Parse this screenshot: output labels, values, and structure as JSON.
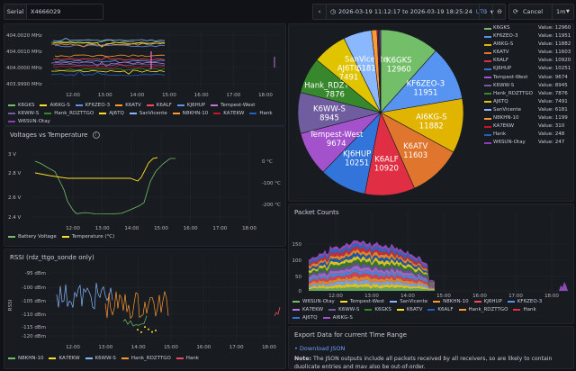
{
  "topbar": {
    "serial_label": "Serial",
    "serial_value": "X4666029",
    "time_range_from": "2026-03-19 11:12:17",
    "time_range_sep": "to",
    "time_range_to": "2026-03-19 18:25:24",
    "timezone": "UTC",
    "cancel_label": "Cancel",
    "refresh_interval": "1m"
  },
  "frequency_panel": {
    "y_ticks": [
      "404.0020 MHz",
      "404.0010 MHz",
      "404.0000 MHz",
      "403.9990 MHz"
    ],
    "x_ticks": [
      "12:00",
      "13:00",
      "14:00",
      "15:00",
      "16:00",
      "17:00",
      "18:00"
    ],
    "legend": [
      {
        "name": "K6GKS",
        "color": "#73bf69"
      },
      {
        "name": "AI6KG-S",
        "color": "#fade2a"
      },
      {
        "name": "KF6ZEO-3",
        "color": "#5794f2"
      },
      {
        "name": "K6ATV",
        "color": "#ff9830"
      },
      {
        "name": "K6ALF",
        "color": "#f2495c"
      },
      {
        "name": "KJ6HUP",
        "color": "#5794f2"
      },
      {
        "name": "Tempest-West",
        "color": "#b877d9"
      },
      {
        "name": "K6WW-S",
        "color": "#705da0"
      },
      {
        "name": "Hank_RDZTTGO",
        "color": "#37872d"
      },
      {
        "name": "AJ6TQ",
        "color": "#fade2a"
      },
      {
        "name": "SanVicente",
        "color": "#8ab8ff"
      },
      {
        "name": "N8KHN-10",
        "color": "#ff9830"
      },
      {
        "name": "KA7EKW",
        "color": "#c4162a"
      },
      {
        "name": "Hank",
        "color": "#1f60c4"
      },
      {
        "name": "W6SUN-Otay",
        "color": "#8f3bb8"
      }
    ]
  },
  "voltage_panel": {
    "title": "Voltages vs Temperature",
    "y_left_ticks": [
      "3 V",
      "2.8 V",
      "2.6 V",
      "2.4 V"
    ],
    "y_right_ticks": [
      "0 °C",
      "-100 °C",
      "-200 °C"
    ],
    "x_ticks": [
      "12:00",
      "13:00",
      "14:00",
      "15:00",
      "16:00",
      "17:00",
      "18:00"
    ],
    "legend": [
      {
        "name": "Battery Voltage",
        "color": "#73bf69"
      },
      {
        "name": "Temperature (°C)",
        "color": "#fade2a"
      }
    ]
  },
  "rssi_panel": {
    "title": "RSSI (rdz_ttgo_sonde only)",
    "y_axis_label": "RSSI",
    "y_ticks": [
      "-95 dBm",
      "-100 dBm",
      "-105 dBm",
      "-110 dBm",
      "-115 dBm",
      "-120 dBm"
    ],
    "x_ticks": [
      "12:00",
      "13:00",
      "14:00",
      "15:00",
      "16:00",
      "17:00",
      "18:00"
    ],
    "legend": [
      {
        "name": "N8KHN-10",
        "color": "#73bf69"
      },
      {
        "name": "KA7EKW",
        "color": "#fade2a"
      },
      {
        "name": "K6WW-S",
        "color": "#8ab8ff"
      },
      {
        "name": "Hank_RDZTTGO",
        "color": "#ff9830"
      },
      {
        "name": "Hank",
        "color": "#f2495c"
      }
    ]
  },
  "pie_panel": {
    "slices": [
      {
        "name": "K6GKS",
        "value": 12960,
        "color": "#73bf69",
        "text": "#ffffff"
      },
      {
        "name": "KF6ZEO-3",
        "value": 11951,
        "color": "#5794f2",
        "text": "#ffffff"
      },
      {
        "name": "AI6KG-S",
        "value": 11882,
        "color": "#e0b400",
        "text": "#ffffff"
      },
      {
        "name": "K6ATV",
        "value": 11603,
        "color": "#e0752d",
        "text": "#ffffff"
      },
      {
        "name": "K6ALF",
        "value": 10920,
        "color": "#e02f44",
        "text": "#ffffff"
      },
      {
        "name": "KJ6HUP",
        "value": 10251,
        "color": "#3274d9",
        "text": "#ffffff"
      },
      {
        "name": "Tempest-West",
        "value": 9674,
        "color": "#a352cc",
        "text": "#ffffff"
      },
      {
        "name": "K6WW-S",
        "value": 8945,
        "color": "#705da0",
        "text": "#ffffff"
      },
      {
        "name": "Hank_RDZTTGO",
        "value": 7876,
        "color": "#37872d",
        "text": "#ffffff"
      },
      {
        "name": "AJ6TQ",
        "value": 7491,
        "color": "#e0c400",
        "text": "#ffffff"
      },
      {
        "name": "SanVicente",
        "value": 6181,
        "color": "#8ab8ff",
        "text": "#ffffff"
      },
      {
        "name": "N8KHN-10",
        "value": 1199,
        "color": "#ff9830",
        "text": "#ffffff"
      },
      {
        "name": "KA7EKW",
        "value": 310,
        "color": "#c4162a",
        "text": "#ffffff"
      },
      {
        "name": "Hank",
        "value": 248,
        "color": "#1f60c4",
        "text": "#ffffff"
      },
      {
        "name": "W6SUN-Otay",
        "value": 247,
        "color": "#8f3bb8",
        "text": "#ffffff"
      }
    ],
    "value_prefix": "Value:"
  },
  "packet_panel": {
    "title": "Packet Counts",
    "y_ticks": [
      "150",
      "100",
      "50",
      "0"
    ],
    "x_ticks": [
      "12:00",
      "13:00",
      "14:00",
      "15:00",
      "16:00",
      "17:00",
      "18:00"
    ],
    "legend": [
      {
        "name": "W6SUN-Otay",
        "color": "#73bf69"
      },
      {
        "name": "Tempest-West",
        "color": "#fade2a"
      },
      {
        "name": "SanVicente",
        "color": "#8ab8ff"
      },
      {
        "name": "N8KHN-10",
        "color": "#ff9830"
      },
      {
        "name": "KJ6HUP",
        "color": "#f2495c"
      },
      {
        "name": "KF6ZEO-3",
        "color": "#5794f2"
      },
      {
        "name": "KA7EKW",
        "color": "#b877d9"
      },
      {
        "name": "K6WW-S",
        "color": "#705da0"
      },
      {
        "name": "K6GKS",
        "color": "#37872d"
      },
      {
        "name": "K6ATV",
        "color": "#fade2a"
      },
      {
        "name": "K6ALF",
        "color": "#1f60c4"
      },
      {
        "name": "Hank_RDZTTGO",
        "color": "#ff9830"
      },
      {
        "name": "Hank",
        "color": "#e02f44"
      },
      {
        "name": "AJ6TQ",
        "color": "#3274d9"
      },
      {
        "name": "AI6KG-S",
        "color": "#a352cc"
      }
    ]
  },
  "export_panel": {
    "title": "Export Data for current Time Range",
    "link": "Download JSON",
    "note_bold": "Note:",
    "note_text": "The JSON outputs include all packets received by all receivers, so are likely to contain duplicate entries and may also be out-of-order."
  }
}
